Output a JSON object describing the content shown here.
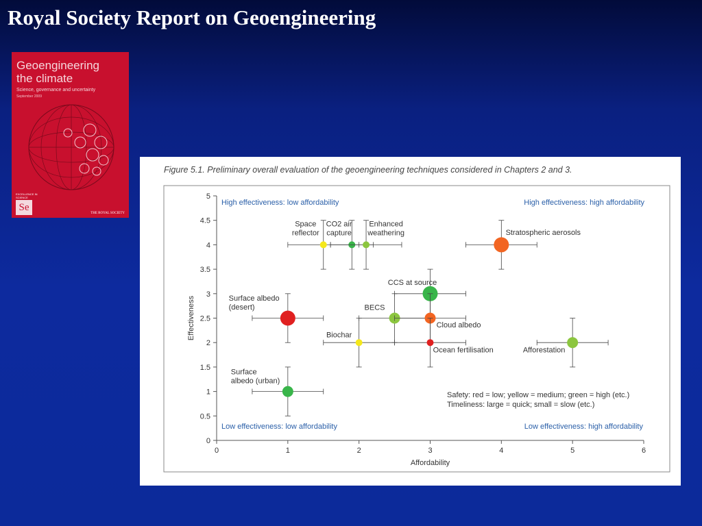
{
  "slide": {
    "title": "Royal Society Report on Geoengineering"
  },
  "cover": {
    "title_line1": "Geoengineering",
    "title_line2": "the climate",
    "subtitle": "Science, governance and uncertainty",
    "date": "September 2009",
    "badge_text": "EXCELLENCE IN SCIENCE",
    "logo_text": "Se",
    "publisher": "THE ROYAL SOCIETY"
  },
  "figure": {
    "caption": "Figure 5.1.  Preliminary overall evaluation of the geoengineering techniques considered in Chapters 2 and 3."
  },
  "colors": {
    "red": "#e02020",
    "orange": "#f26522",
    "yellow": "#f5e81c",
    "lightgreen": "#8cc63f",
    "green": "#39b54a",
    "quadrant_text": "#2a5fa8"
  },
  "chart_data": {
    "type": "scatter",
    "xlabel": "Affordability",
    "ylabel": "Effectiveness",
    "xlim": [
      0,
      6
    ],
    "ylim": [
      0,
      5
    ],
    "xticks": [
      "0",
      "1",
      "2",
      "3",
      "4",
      "5",
      "6"
    ],
    "yticks": [
      "0",
      "0.5",
      "1",
      "1.5",
      "2",
      "2.5",
      "3",
      "3.5",
      "4",
      "4.5",
      "5"
    ],
    "grid": false,
    "quadrant_labels": {
      "top_left": "High effectiveness: low affordability",
      "top_right": "High effectiveness: high affordability",
      "bottom_left": "Low effectiveness: low affordability",
      "bottom_right": "Low effectiveness: high affordability"
    },
    "legend_lines": [
      "Safety: red = low; yellow = medium; green = high (etc.)",
      "Timeliness: large = quick; small = slow (etc.)"
    ],
    "points": [
      {
        "label_lines": [
          "Space",
          "reflector"
        ],
        "x": 1.5,
        "y": 4,
        "x_err": [
          1.0,
          2.0
        ],
        "y_err": [
          3.5,
          4.5
        ],
        "safety": "yellow",
        "timeliness": "small"
      },
      {
        "label_lines": [
          "CO2 air",
          "capture"
        ],
        "x": 1.9,
        "y": 4,
        "x_err": [
          1.6,
          2.2
        ],
        "y_err": [
          3.5,
          4.5
        ],
        "safety": "green",
        "timeliness": "small"
      },
      {
        "label_lines": [
          "Enhanced",
          "weathering"
        ],
        "x": 2.1,
        "y": 4,
        "x_err": [
          1.6,
          2.6
        ],
        "y_err": [
          3.5,
          4.5
        ],
        "safety": "lightgreen",
        "timeliness": "small"
      },
      {
        "label_lines": [
          "Stratospheric aerosols"
        ],
        "x": 4,
        "y": 4,
        "x_err": [
          3.5,
          4.5
        ],
        "y_err": [
          3.5,
          4.5
        ],
        "safety": "orange",
        "timeliness": "large"
      },
      {
        "label_lines": [
          "CCS at source"
        ],
        "x": 3,
        "y": 3,
        "x_err": [
          2.5,
          3.5
        ],
        "y_err": [
          2.5,
          3.5
        ],
        "safety": "green",
        "timeliness": "large"
      },
      {
        "label_lines": [
          "Surface albedo",
          "(desert)"
        ],
        "x": 1,
        "y": 2.5,
        "x_err": [
          0.5,
          1.5
        ],
        "y_err": [
          2.0,
          3.0
        ],
        "safety": "red",
        "timeliness": "large"
      },
      {
        "label_lines": [
          "BECS"
        ],
        "x": 2.5,
        "y": 2.5,
        "x_err": [
          2.0,
          3.0
        ],
        "y_err": [
          2.0,
          3.0
        ],
        "safety": "lightgreen",
        "timeliness": "medium"
      },
      {
        "label_lines": [
          "Cloud albedo"
        ],
        "x": 3,
        "y": 2.5,
        "x_err": [
          2.5,
          3.5
        ],
        "y_err": [
          2.0,
          3.0
        ],
        "safety": "orange",
        "timeliness": "medium"
      },
      {
        "label_lines": [
          "Biochar"
        ],
        "x": 2,
        "y": 2,
        "x_err": [
          1.5,
          2.5
        ],
        "y_err": [
          1.5,
          2.5
        ],
        "safety": "yellow",
        "timeliness": "small"
      },
      {
        "label_lines": [
          "Ocean fertilisation"
        ],
        "x": 3,
        "y": 2,
        "x_err": [
          2.5,
          3.5
        ],
        "y_err": [
          1.5,
          2.5
        ],
        "safety": "red",
        "timeliness": "small"
      },
      {
        "label_lines": [
          "Afforestation"
        ],
        "x": 5,
        "y": 2,
        "x_err": [
          4.5,
          5.5
        ],
        "y_err": [
          1.5,
          2.5
        ],
        "safety": "lightgreen",
        "timeliness": "medium"
      },
      {
        "label_lines": [
          "Surface",
          "albedo (urban)"
        ],
        "x": 1,
        "y": 1,
        "x_err": [
          0.5,
          1.5
        ],
        "y_err": [
          0.5,
          1.5
        ],
        "safety": "green",
        "timeliness": "medium"
      }
    ]
  }
}
